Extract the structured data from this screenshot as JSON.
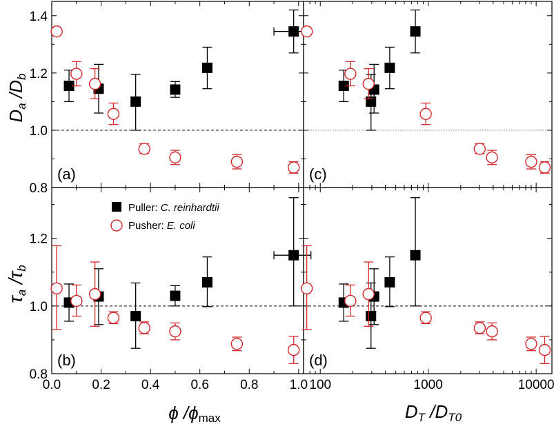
{
  "colors": {
    "puller": "#000000",
    "pusher": "#d62728",
    "reference_line": "#000000",
    "axes": "#000000"
  },
  "legend": {
    "items": [
      {
        "symbol": "filled-square",
        "label": "Puller: ",
        "species": "C. reinhardtii"
      },
      {
        "symbol": "open-circle",
        "label": "Pusher: ",
        "species": "E. coli"
      }
    ]
  },
  "axis_labels": {
    "x_left": {
      "main": "ϕ /ϕ",
      "sub": "max"
    },
    "x_right": {
      "main": "D",
      "sub1": "T",
      "mid": " /D",
      "sub2": "T0"
    },
    "y_top": {
      "main": "D",
      "sub1": "a",
      "mid": " /D",
      "sub2": "b"
    },
    "y_bottom": {
      "main": "τ",
      "sub1": "a",
      "mid": " /τ",
      "sub2": "b"
    }
  },
  "chart_data": [
    {
      "id": "a",
      "panel_label": "(a)",
      "type": "scatter",
      "x_scale": "linear",
      "xlim": [
        0,
        1.02
      ],
      "ylim": [
        0.8,
        1.45
      ],
      "x_ticks": [
        0.0,
        0.2,
        0.4,
        0.6,
        0.8,
        1.0
      ],
      "x_tick_labels": [
        "0.0",
        "0.2",
        "0.4",
        "0.6",
        "0.8",
        "1.0"
      ],
      "y_ticks": [
        0.8,
        1.0,
        1.2,
        1.4
      ],
      "y_tick_labels": [
        "0.8",
        "1.0",
        "1.2",
        "1.4"
      ],
      "reference_y": 1.0,
      "series": [
        {
          "name": "Puller: C. reinhardtii",
          "marker": "filled-square",
          "points": [
            {
              "x": 0.07,
              "y": 1.155,
              "ylo": 1.1,
              "yhi": 1.21
            },
            {
              "x": 0.19,
              "y": 1.145,
              "ylo": 1.06,
              "yhi": 1.23
            },
            {
              "x": 0.34,
              "y": 1.1,
              "ylo": 1.0,
              "yhi": 1.195
            },
            {
              "x": 0.5,
              "y": 1.142,
              "ylo": 1.115,
              "yhi": 1.17
            },
            {
              "x": 0.63,
              "y": 1.218,
              "ylo": 1.145,
              "yhi": 1.29
            },
            {
              "x": 0.98,
              "y": 1.345,
              "ylo": 1.27,
              "yhi": 1.42,
              "xlo": 0.9,
              "xhi": 1.05
            }
          ]
        },
        {
          "name": "Pusher: E. coli",
          "marker": "open-circle",
          "points": [
            {
              "x": 0.02,
              "y": 1.345,
              "ylo": 1.335,
              "yhi": 1.355
            },
            {
              "x": 0.1,
              "y": 1.197,
              "ylo": 1.155,
              "yhi": 1.24
            },
            {
              "x": 0.175,
              "y": 1.162,
              "ylo": 1.11,
              "yhi": 1.215
            },
            {
              "x": 0.25,
              "y": 1.057,
              "ylo": 1.02,
              "yhi": 1.095
            },
            {
              "x": 0.375,
              "y": 0.935,
              "ylo": 0.918,
              "yhi": 0.953
            },
            {
              "x": 0.5,
              "y": 0.905,
              "ylo": 0.88,
              "yhi": 0.93
            },
            {
              "x": 0.75,
              "y": 0.89,
              "ylo": 0.865,
              "yhi": 0.915
            },
            {
              "x": 0.98,
              "y": 0.87,
              "ylo": 0.85,
              "yhi": 0.89
            }
          ]
        }
      ]
    },
    {
      "id": "b",
      "panel_label": "(b)",
      "type": "scatter",
      "x_scale": "linear",
      "xlim": [
        0,
        1.02
      ],
      "ylim": [
        0.8,
        1.35
      ],
      "x_ticks": [
        0.0,
        0.2,
        0.4,
        0.6,
        0.8,
        1.0
      ],
      "x_tick_labels": [
        "0.0",
        "0.2",
        "0.4",
        "0.6",
        "0.8",
        "1.0"
      ],
      "y_ticks": [
        0.8,
        1.0,
        1.2
      ],
      "y_tick_labels": [
        "0.8",
        "1.0",
        "1.2"
      ],
      "reference_y": 1.0,
      "series": [
        {
          "name": "Puller: C. reinhardtii",
          "marker": "filled-square",
          "points": [
            {
              "x": 0.07,
              "y": 1.01,
              "ylo": 0.955,
              "yhi": 1.065
            },
            {
              "x": 0.19,
              "y": 1.028,
              "ylo": 0.945,
              "yhi": 1.11
            },
            {
              "x": 0.34,
              "y": 0.97,
              "ylo": 0.875,
              "yhi": 1.068
            },
            {
              "x": 0.5,
              "y": 1.03,
              "ylo": 1.0,
              "yhi": 1.06
            },
            {
              "x": 0.63,
              "y": 1.07,
              "ylo": 0.998,
              "yhi": 1.145
            },
            {
              "x": 0.98,
              "y": 1.15,
              "ylo": 1.0,
              "yhi": 1.32,
              "xlo": 0.9,
              "xhi": 1.05
            }
          ]
        },
        {
          "name": "Pusher: E. coli",
          "marker": "open-circle",
          "points": [
            {
              "x": 0.02,
              "y": 1.052,
              "ylo": 0.93,
              "yhi": 1.178
            },
            {
              "x": 0.1,
              "y": 1.015,
              "ylo": 0.97,
              "yhi": 1.062
            },
            {
              "x": 0.175,
              "y": 1.035,
              "ylo": 0.94,
              "yhi": 1.13
            },
            {
              "x": 0.25,
              "y": 0.965,
              "ylo": 0.948,
              "yhi": 0.983
            },
            {
              "x": 0.375,
              "y": 0.935,
              "ylo": 0.918,
              "yhi": 0.953
            },
            {
              "x": 0.5,
              "y": 0.925,
              "ylo": 0.9,
              "yhi": 0.95
            },
            {
              "x": 0.75,
              "y": 0.888,
              "ylo": 0.868,
              "yhi": 0.908
            },
            {
              "x": 0.98,
              "y": 0.87,
              "ylo": 0.83,
              "yhi": 0.91
            }
          ]
        }
      ]
    },
    {
      "id": "c",
      "panel_label": "(c)",
      "type": "scatter",
      "x_scale": "log",
      "xlim": [
        70,
        14000
      ],
      "ylim": [
        0.8,
        1.45
      ],
      "x_ticks": [
        100,
        1000,
        10000
      ],
      "x_tick_labels": [
        "100",
        "1000",
        "10000"
      ],
      "y_ticks": [
        0.8,
        1.0,
        1.2,
        1.4
      ],
      "y_tick_labels": [
        "0.8",
        "1.0",
        "1.2",
        "1.4"
      ],
      "reference_y": 1.0,
      "series": [
        {
          "name": "Puller: C. reinhardtii",
          "marker": "filled-square",
          "points": [
            {
              "x": 165,
              "y": 1.155,
              "ylo": 1.1,
              "yhi": 1.21
            },
            {
              "x": 295,
              "y": 1.1,
              "ylo": 1.0,
              "yhi": 1.195
            },
            {
              "x": 315,
              "y": 1.142,
              "ylo": 1.06,
              "yhi": 1.23
            },
            {
              "x": 440,
              "y": 1.218,
              "ylo": 1.145,
              "yhi": 1.29
            },
            {
              "x": 760,
              "y": 1.345,
              "ylo": 1.27,
              "yhi": 1.42
            }
          ]
        },
        {
          "name": "Pusher: E. coli",
          "marker": "open-circle",
          "points": [
            {
              "x": 75,
              "y": 1.345,
              "ylo": 1.335,
              "yhi": 1.355
            },
            {
              "x": 190,
              "y": 1.197,
              "ylo": 1.155,
              "yhi": 1.24
            },
            {
              "x": 280,
              "y": 1.162,
              "ylo": 1.11,
              "yhi": 1.215
            },
            {
              "x": 950,
              "y": 1.057,
              "ylo": 1.02,
              "yhi": 1.095
            },
            {
              "x": 3000,
              "y": 0.935,
              "ylo": 0.918,
              "yhi": 0.953
            },
            {
              "x": 3900,
              "y": 0.905,
              "ylo": 0.88,
              "yhi": 0.93
            },
            {
              "x": 9000,
              "y": 0.89,
              "ylo": 0.865,
              "yhi": 0.915
            },
            {
              "x": 12000,
              "y": 0.87,
              "ylo": 0.85,
              "yhi": 0.89
            }
          ]
        }
      ]
    },
    {
      "id": "d",
      "panel_label": "(d)",
      "type": "scatter",
      "x_scale": "log",
      "xlim": [
        70,
        14000
      ],
      "ylim": [
        0.8,
        1.35
      ],
      "x_ticks": [
        100,
        1000,
        10000
      ],
      "x_tick_labels": [
        "100",
        "1000",
        "10000"
      ],
      "y_ticks": [
        0.8,
        1.0,
        1.2
      ],
      "y_tick_labels": [
        "0.8",
        "1.0",
        "1.2"
      ],
      "reference_y": 1.0,
      "series": [
        {
          "name": "Puller: C. reinhardtii",
          "marker": "filled-square",
          "points": [
            {
              "x": 165,
              "y": 1.01,
              "ylo": 0.955,
              "yhi": 1.065
            },
            {
              "x": 295,
              "y": 0.97,
              "ylo": 0.875,
              "yhi": 1.068
            },
            {
              "x": 315,
              "y": 1.028,
              "ylo": 0.945,
              "yhi": 1.11
            },
            {
              "x": 440,
              "y": 1.07,
              "ylo": 0.998,
              "yhi": 1.145
            },
            {
              "x": 760,
              "y": 1.15,
              "ylo": 1.0,
              "yhi": 1.32
            }
          ]
        },
        {
          "name": "Pusher: E. coli",
          "marker": "open-circle",
          "points": [
            {
              "x": 75,
              "y": 1.052,
              "ylo": 0.93,
              "yhi": 1.178
            },
            {
              "x": 190,
              "y": 1.015,
              "ylo": 0.97,
              "yhi": 1.062
            },
            {
              "x": 280,
              "y": 1.035,
              "ylo": 0.94,
              "yhi": 1.13
            },
            {
              "x": 950,
              "y": 0.965,
              "ylo": 0.948,
              "yhi": 0.983
            },
            {
              "x": 3000,
              "y": 0.935,
              "ylo": 0.918,
              "yhi": 0.953
            },
            {
              "x": 3900,
              "y": 0.925,
              "ylo": 0.9,
              "yhi": 0.95
            },
            {
              "x": 9000,
              "y": 0.888,
              "ylo": 0.868,
              "yhi": 0.908
            },
            {
              "x": 12000,
              "y": 0.87,
              "ylo": 0.83,
              "yhi": 0.91
            }
          ]
        }
      ]
    }
  ]
}
